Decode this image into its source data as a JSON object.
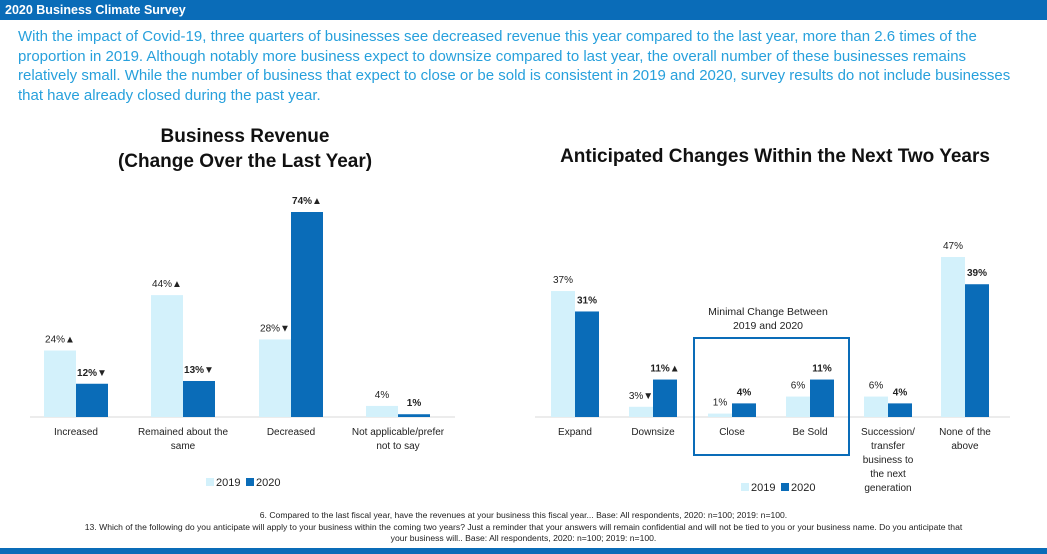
{
  "header": {
    "title": "2020 Business Climate Survey"
  },
  "intro_text": "With the impact of Covid-19, three quarters of businesses see decreased revenue this year compared to the last year, more than 2.6 times of the proportion in 2019. Although notably more business expect to downsize compared to last year, the overall number of these businesses remains relatively small. While the number of business that expect to close or be sold is consistent in 2019 and 2020, survey results do not include businesses that have already closed during the past year.",
  "colors": {
    "series_2019": "#d3f1fb",
    "series_2020": "#0a6cb8",
    "header": "#0a6cb8",
    "intro": "#27a0dc"
  },
  "chart_data": [
    {
      "type": "bar",
      "title": "Business Revenue",
      "subtitle": "(Change Over the Last Year)",
      "categories": [
        "Increased",
        "Remained about the same",
        "Decreased",
        "Not applicable/prefer not to say"
      ],
      "series": [
        {
          "name": "2019",
          "values": [
            24,
            44,
            28,
            4
          ],
          "labels": [
            "24%▲",
            "44%▲",
            "28%▼",
            "4%"
          ]
        },
        {
          "name": "2020",
          "values": [
            12,
            13,
            74,
            1
          ],
          "labels": [
            "12%▼",
            "13%▼",
            "74%▲",
            "1%"
          ]
        }
      ],
      "ylim": [
        0,
        80
      ],
      "grid": false,
      "legend": "bottom-center"
    },
    {
      "type": "bar",
      "title": "Anticipated Changes Within the Next Two Years",
      "categories": [
        "Expand",
        "Downsize",
        "Close",
        "Be Sold",
        "Succession/ transfer business to the next generation",
        "None of the above"
      ],
      "series": [
        {
          "name": "2019",
          "values": [
            37,
            3,
            1,
            6,
            6,
            47
          ],
          "labels": [
            "37%",
            "3%▼",
            "1%",
            "6%",
            "6%",
            "47%"
          ]
        },
        {
          "name": "2020",
          "values": [
            31,
            11,
            4,
            11,
            4,
            39
          ],
          "labels": [
            "31%",
            "11%▲",
            "4%",
            "11%",
            "4%",
            "39%"
          ]
        }
      ],
      "annotation": "Minimal Change Between 2019 and 2020",
      "ylim": [
        0,
        50
      ],
      "grid": false,
      "legend": "bottom-center"
    }
  ],
  "footnotes": {
    "q6": "6. Compared to the last fiscal year, have the revenues at your business this fiscal year... Base: All respondents, 2020: n=100; 2019: n=100.",
    "q13_line1": "13. Which of the following do you anticipate will apply to your business within the coming two years? Just a reminder that your answers will remain confidential and will not be tied to you or your business name. Do you anticipate that",
    "q13_line2": "your business will.. Base: All respondents, 2020: n=100; 2019: n=100."
  }
}
